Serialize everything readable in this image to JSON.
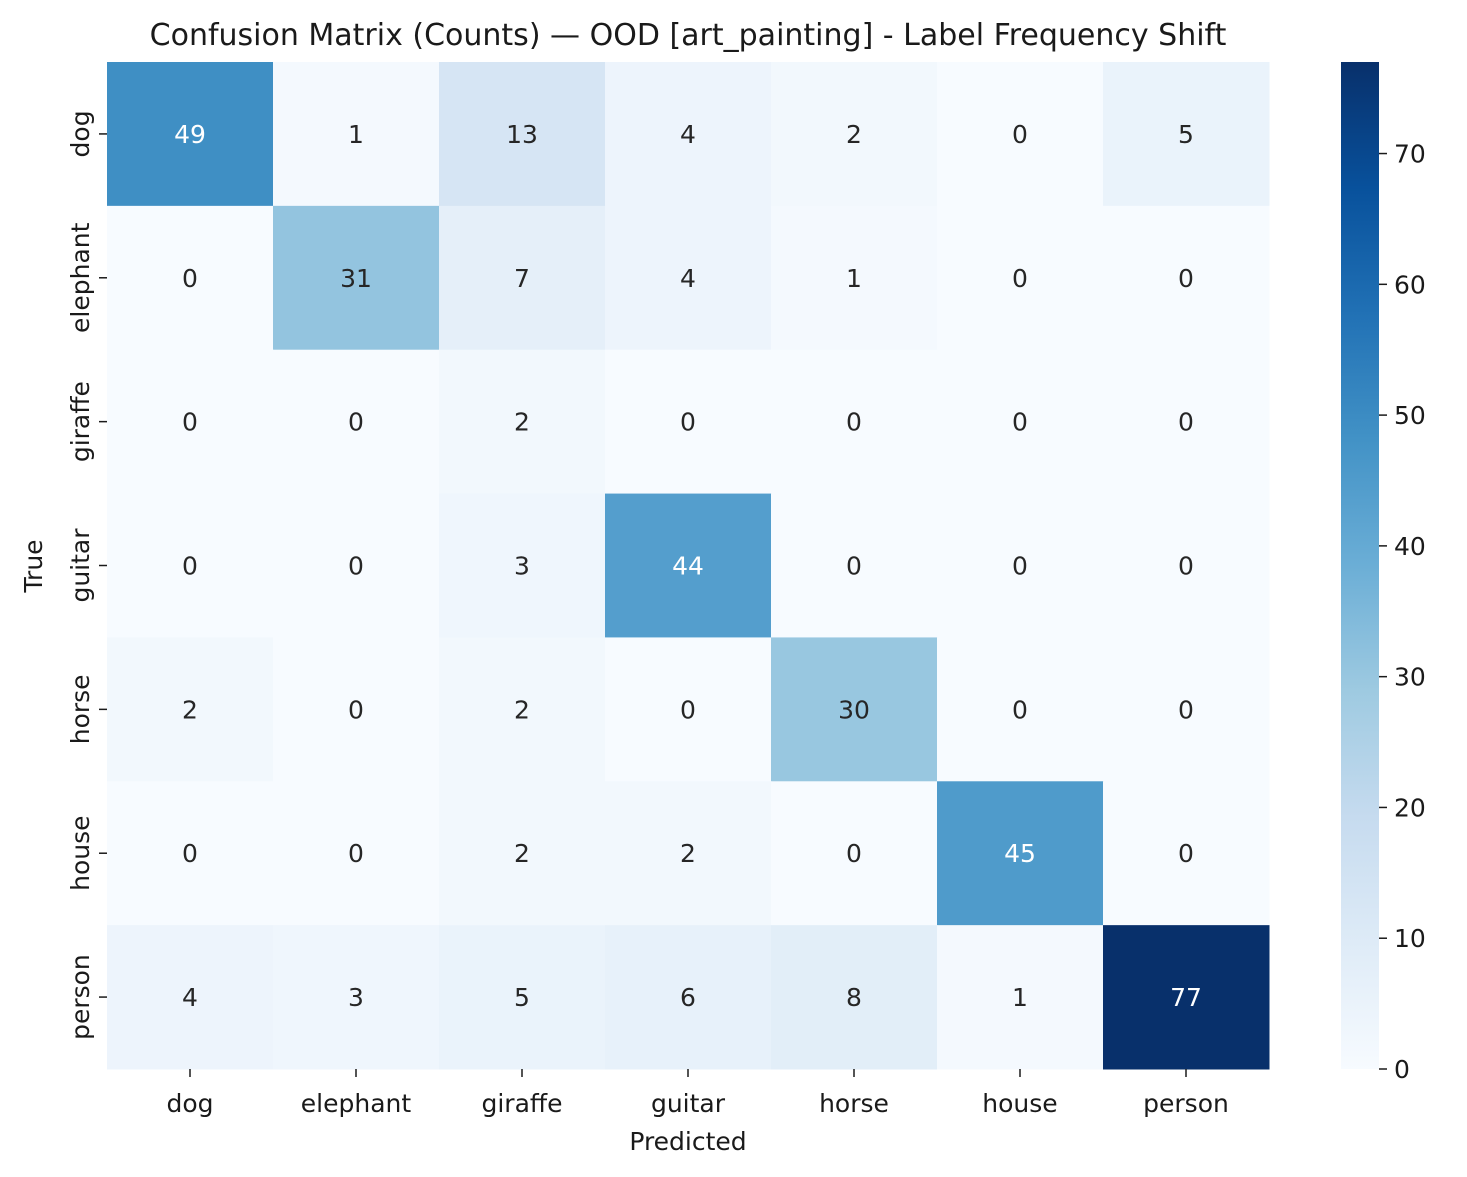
{
  "chart_data": {
    "type": "heatmap",
    "title": "Confusion Matrix (Counts) — OOD [art_painting] - Label Frequency Shift",
    "xlabel": "Predicted",
    "ylabel": "True",
    "x_categories": [
      "dog",
      "elephant",
      "giraffe",
      "guitar",
      "horse",
      "house",
      "person"
    ],
    "y_categories": [
      "dog",
      "elephant",
      "giraffe",
      "guitar",
      "horse",
      "house",
      "person"
    ],
    "values": [
      [
        49,
        1,
        13,
        4,
        2,
        0,
        5
      ],
      [
        0,
        31,
        7,
        4,
        1,
        0,
        0
      ],
      [
        0,
        0,
        2,
        0,
        0,
        0,
        0
      ],
      [
        0,
        0,
        3,
        44,
        0,
        0,
        0
      ],
      [
        2,
        0,
        2,
        0,
        30,
        0,
        0
      ],
      [
        0,
        0,
        2,
        2,
        0,
        45,
        0
      ],
      [
        4,
        3,
        5,
        6,
        8,
        1,
        77
      ]
    ],
    "colorbar": {
      "min": 0,
      "max": 77,
      "ticks": [
        0,
        10,
        20,
        30,
        40,
        50,
        60,
        70
      ],
      "colormap": "Blues"
    }
  }
}
